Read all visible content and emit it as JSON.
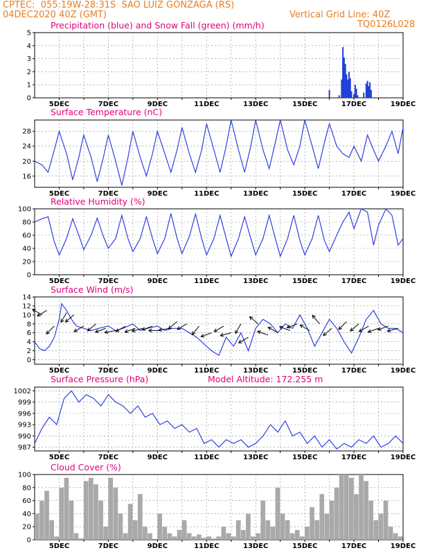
{
  "header": {
    "line1_left": "CPTEC:  055:19W-28:31S  SAO LUIZ GONZAGA (RS)",
    "line2_left": "04DEC2020 40Z (GMT)",
    "line2_right": "Vertical Grid Line: 40Z",
    "line3_right": "TQ0126L028"
  },
  "colors": {
    "header": "#e67e22",
    "title": "#e0007a",
    "line": "#2f3fe0",
    "bar_blue": "#1f3fd8",
    "bar_green": "#22bb22",
    "cloud": "#a9a9a9",
    "grid": "#888888"
  },
  "x_labels": [
    "5DEC",
    "7DEC",
    "9DEC",
    "11DEC",
    "13DEC",
    "15DEC",
    "17DEC",
    "19DEC"
  ],
  "chart_data": [
    {
      "type": "bar",
      "title": "Precipitation (blue) and Snow Fall (green) (mm/h)",
      "xlabel": "",
      "ylabel": "",
      "ylim": [
        0,
        5
      ],
      "yticks": [
        0,
        1,
        2,
        3,
        4,
        5
      ],
      "series": [
        {
          "name": "Precipitation",
          "color": "#1f3fd8",
          "points": [
            [
              16.0,
              0.6
            ],
            [
              16.4,
              0.2
            ],
            [
              16.5,
              1.4
            ],
            [
              16.55,
              3.9
            ],
            [
              16.6,
              3.1
            ],
            [
              16.65,
              2.6
            ],
            [
              16.7,
              1.8
            ],
            [
              16.75,
              1.4
            ],
            [
              16.8,
              2.0
            ],
            [
              16.85,
              1.5
            ],
            [
              16.9,
              0.5
            ],
            [
              17.0,
              0.3
            ],
            [
              17.05,
              1.0
            ],
            [
              17.1,
              0.7
            ],
            [
              17.15,
              0.2
            ],
            [
              17.4,
              0.4
            ],
            [
              17.5,
              1.1
            ],
            [
              17.55,
              1.3
            ],
            [
              17.6,
              0.9
            ],
            [
              17.65,
              1.2
            ],
            [
              17.7,
              0.6
            ]
          ]
        },
        {
          "name": "Snow Fall",
          "color": "#22bb22",
          "points": [
            [
              4.9,
              0.05
            ],
            [
              5.1,
              0.05
            ],
            [
              6.9,
              0.05
            ],
            [
              8.2,
              0.05
            ],
            [
              15.9,
              0.05
            ],
            [
              16.2,
              0.05
            ],
            [
              17.3,
              0.05
            ]
          ]
        }
      ]
    },
    {
      "type": "line",
      "title": "Surface Temperature (nC)",
      "ylim": [
        13,
        31
      ],
      "yticks": [
        16,
        20,
        24,
        28
      ],
      "series": [
        {
          "name": "Surface Temperature",
          "x": [
            4.0,
            4.3,
            4.55,
            4.8,
            5.0,
            5.3,
            5.55,
            5.8,
            6.0,
            6.3,
            6.55,
            6.8,
            7.0,
            7.3,
            7.55,
            7.8,
            8.0,
            8.3,
            8.55,
            8.8,
            9.0,
            9.3,
            9.55,
            9.8,
            10.0,
            10.3,
            10.55,
            10.8,
            11.0,
            11.3,
            11.55,
            11.8,
            12.0,
            12.3,
            12.55,
            12.8,
            13.0,
            13.3,
            13.55,
            13.8,
            14.0,
            14.3,
            14.55,
            14.8,
            15.0,
            15.3,
            15.55,
            15.8,
            16.0,
            16.3,
            16.55,
            16.8,
            17.0,
            17.3,
            17.55,
            17.8,
            18.0,
            18.3,
            18.55,
            18.8,
            19.0
          ],
          "y": [
            20,
            19,
            17,
            23,
            28,
            22,
            15,
            21,
            27,
            21,
            14.5,
            21,
            27,
            20,
            13.5,
            21,
            28,
            21,
            16,
            22,
            28,
            22,
            17,
            23,
            29,
            22,
            17,
            23,
            30,
            23,
            17,
            24,
            31,
            23,
            17,
            24,
            31,
            23,
            18,
            25,
            31,
            23,
            19,
            24,
            31,
            24,
            18,
            25,
            30,
            24,
            22,
            21,
            24,
            20,
            27,
            23,
            20,
            24,
            28,
            22,
            29
          ]
        }
      ]
    },
    {
      "type": "line",
      "title": "Relative Humidity (%)",
      "ylim": [
        0,
        100
      ],
      "yticks": [
        0,
        20,
        40,
        60,
        80,
        100
      ],
      "series": [
        {
          "name": "Relative Humidity",
          "x": [
            4.0,
            4.3,
            4.55,
            4.8,
            5.0,
            5.3,
            5.55,
            5.8,
            6.0,
            6.3,
            6.55,
            6.8,
            7.0,
            7.3,
            7.55,
            7.8,
            8.0,
            8.3,
            8.55,
            8.8,
            9.0,
            9.3,
            9.55,
            9.8,
            10.0,
            10.3,
            10.55,
            10.8,
            11.0,
            11.3,
            11.55,
            11.8,
            12.0,
            12.3,
            12.55,
            12.8,
            13.0,
            13.3,
            13.55,
            13.8,
            14.0,
            14.3,
            14.55,
            14.8,
            15.0,
            15.3,
            15.55,
            15.8,
            16.0,
            16.3,
            16.55,
            16.8,
            17.0,
            17.3,
            17.55,
            17.8,
            18.0,
            18.3,
            18.55,
            18.8,
            19.0
          ],
          "y": [
            80,
            85,
            88,
            50,
            30,
            55,
            85,
            60,
            38,
            60,
            86,
            58,
            40,
            55,
            90,
            55,
            35,
            55,
            88,
            55,
            32,
            55,
            93,
            55,
            32,
            58,
            92,
            55,
            30,
            55,
            90,
            55,
            28,
            55,
            88,
            55,
            30,
            55,
            90,
            55,
            28,
            55,
            90,
            52,
            30,
            55,
            90,
            52,
            35,
            60,
            80,
            95,
            70,
            100,
            95,
            45,
            75,
            100,
            90,
            45,
            55
          ]
        }
      ]
    },
    {
      "type": "line",
      "title": "Surface Wind (m/s)",
      "ylim": [
        -1,
        14
      ],
      "yticks": [
        0,
        2,
        4,
        6,
        8,
        10,
        12,
        14
      ],
      "series": [
        {
          "name": "Surface Wind Speed",
          "x": [
            4.0,
            4.2,
            4.4,
            4.6,
            4.8,
            5.0,
            5.1,
            5.3,
            5.5,
            5.7,
            6.0,
            6.3,
            6.6,
            7.0,
            7.3,
            7.6,
            8.0,
            8.3,
            8.6,
            9.0,
            9.3,
            9.6,
            10.0,
            10.3,
            10.6,
            10.9,
            11.2,
            11.5,
            11.8,
            12.1,
            12.4,
            12.7,
            13.0,
            13.3,
            13.6,
            13.9,
            14.2,
            14.5,
            14.8,
            15.1,
            15.4,
            15.7,
            16.0,
            16.3,
            16.6,
            16.9,
            17.2,
            17.5,
            17.8,
            18.1,
            18.4,
            18.7,
            19.0
          ],
          "y": [
            4,
            2.5,
            2,
            3,
            5,
            9,
            12.5,
            11,
            9,
            7.5,
            7,
            6.5,
            7,
            7.5,
            6.5,
            7,
            8,
            6.5,
            7,
            7.5,
            6.5,
            7,
            7,
            6,
            5,
            3.5,
            2,
            1,
            5,
            3,
            6,
            2,
            7,
            9,
            8,
            6,
            8,
            7,
            10,
            7,
            3,
            6,
            9,
            7,
            4,
            1.5,
            5,
            9,
            11,
            8,
            7,
            7,
            6
          ]
        }
      ],
      "arrows": [
        [
          4.3,
          10.0,
          30
        ],
        [
          4.5,
          11.0,
          -30
        ],
        [
          4.8,
          7.5,
          -45
        ],
        [
          5.3,
          10.5,
          -60
        ],
        [
          5.6,
          10.0,
          -40
        ],
        [
          6.0,
          7.5,
          -30
        ],
        [
          6.5,
          8.0,
          -40
        ],
        [
          6.9,
          7.0,
          -20
        ],
        [
          7.3,
          6.5,
          -10
        ],
        [
          7.7,
          7.5,
          -30
        ],
        [
          8.1,
          7.0,
          -20
        ],
        [
          8.4,
          7.0,
          -15
        ],
        [
          8.8,
          7.5,
          -20
        ],
        [
          9.1,
          6.5,
          0
        ],
        [
          9.5,
          7.0,
          -10
        ],
        [
          9.8,
          8.5,
          -40
        ],
        [
          10.2,
          8.0,
          -30
        ],
        [
          10.7,
          7.5,
          -50
        ],
        [
          11.2,
          6.0,
          -20
        ],
        [
          11.7,
          7.5,
          -30
        ],
        [
          12.0,
          6.0,
          -15
        ],
        [
          12.4,
          8.0,
          -60
        ],
        [
          12.7,
          5.0,
          -30
        ],
        [
          13.1,
          8.0,
          40
        ],
        [
          13.5,
          5.5,
          20
        ],
        [
          13.9,
          6.0,
          30
        ],
        [
          14.4,
          6.5,
          20
        ],
        [
          14.7,
          8.0,
          -20
        ],
        [
          15.2,
          6.5,
          30
        ],
        [
          15.6,
          8.0,
          50
        ],
        [
          16.1,
          7.0,
          -40
        ],
        [
          16.7,
          8.5,
          -45
        ],
        [
          17.2,
          8.0,
          -40
        ],
        [
          17.6,
          7.5,
          -30
        ],
        [
          18.0,
          7.0,
          -20
        ],
        [
          18.4,
          7.5,
          -20
        ],
        [
          18.8,
          7.0,
          -15
        ]
      ]
    },
    {
      "type": "line",
      "title": "Surface Pressure (hPa)",
      "annotation": "Model Altitude: 172.255 m",
      "ylim": [
        986,
        1003
      ],
      "yticks": [
        987,
        990,
        993,
        996,
        999,
        1002
      ],
      "series": [
        {
          "name": "Surface Pressure",
          "x": [
            4.0,
            4.3,
            4.6,
            4.9,
            5.2,
            5.5,
            5.8,
            6.1,
            6.4,
            6.7,
            7.0,
            7.3,
            7.6,
            7.9,
            8.2,
            8.5,
            8.8,
            9.1,
            9.4,
            9.7,
            10.0,
            10.3,
            10.6,
            10.9,
            11.2,
            11.5,
            11.8,
            12.1,
            12.4,
            12.7,
            13.0,
            13.3,
            13.6,
            13.9,
            14.2,
            14.5,
            14.8,
            15.1,
            15.4,
            15.7,
            16.0,
            16.3,
            16.6,
            16.9,
            17.2,
            17.5,
            17.8,
            18.1,
            18.4,
            18.7,
            19.0
          ],
          "y": [
            988,
            992,
            995,
            993,
            1000,
            1002,
            999,
            1001,
            1000,
            998,
            1001,
            999,
            998,
            996,
            998,
            995,
            996,
            993,
            994,
            992,
            993,
            991,
            992,
            988,
            989,
            987,
            989,
            988,
            989,
            987,
            988,
            990,
            993,
            991,
            994,
            990,
            991,
            988,
            990,
            987,
            989,
            986.5,
            988,
            987,
            989,
            988,
            990,
            987,
            988,
            990,
            988
          ]
        }
      ]
    },
    {
      "type": "area",
      "title": "Cloud Cover (%)",
      "ylim": [
        0,
        100
      ],
      "yticks": [
        0,
        20,
        40,
        60,
        80,
        100
      ],
      "series": [
        {
          "name": "Cloud Cover",
          "x": [
            4.0,
            4.2,
            4.4,
            4.6,
            4.8,
            5.0,
            5.2,
            5.4,
            5.6,
            5.8,
            6.0,
            6.2,
            6.4,
            6.6,
            6.8,
            7.0,
            7.2,
            7.4,
            7.6,
            7.8,
            8.0,
            8.2,
            8.4,
            8.6,
            8.8,
            9.0,
            9.2,
            9.4,
            9.6,
            9.8,
            10.0,
            10.2,
            10.4,
            10.6,
            10.8,
            11.0,
            11.2,
            11.4,
            11.6,
            11.8,
            12.0,
            12.2,
            12.4,
            12.6,
            12.8,
            13.0,
            13.2,
            13.4,
            13.6,
            13.8,
            14.0,
            14.2,
            14.4,
            14.6,
            14.8,
            15.0,
            15.2,
            15.4,
            15.6,
            15.8,
            16.0,
            16.2,
            16.4,
            16.6,
            16.8,
            17.0,
            17.2,
            17.4,
            17.6,
            17.8,
            18.0,
            18.2,
            18.4,
            18.6,
            18.8,
            19.0
          ],
          "y": [
            40,
            60,
            75,
            30,
            5,
            80,
            95,
            60,
            10,
            2,
            90,
            95,
            85,
            60,
            20,
            95,
            80,
            40,
            10,
            55,
            30,
            70,
            20,
            10,
            0,
            40,
            20,
            10,
            5,
            15,
            30,
            10,
            5,
            8,
            3,
            5,
            2,
            5,
            20,
            10,
            5,
            30,
            15,
            40,
            5,
            10,
            60,
            30,
            20,
            80,
            40,
            30,
            10,
            15,
            5,
            20,
            50,
            30,
            70,
            40,
            60,
            80,
            100,
            100,
            95,
            70,
            100,
            90,
            60,
            30,
            40,
            60,
            20,
            10,
            5,
            5
          ]
        }
      ]
    }
  ]
}
